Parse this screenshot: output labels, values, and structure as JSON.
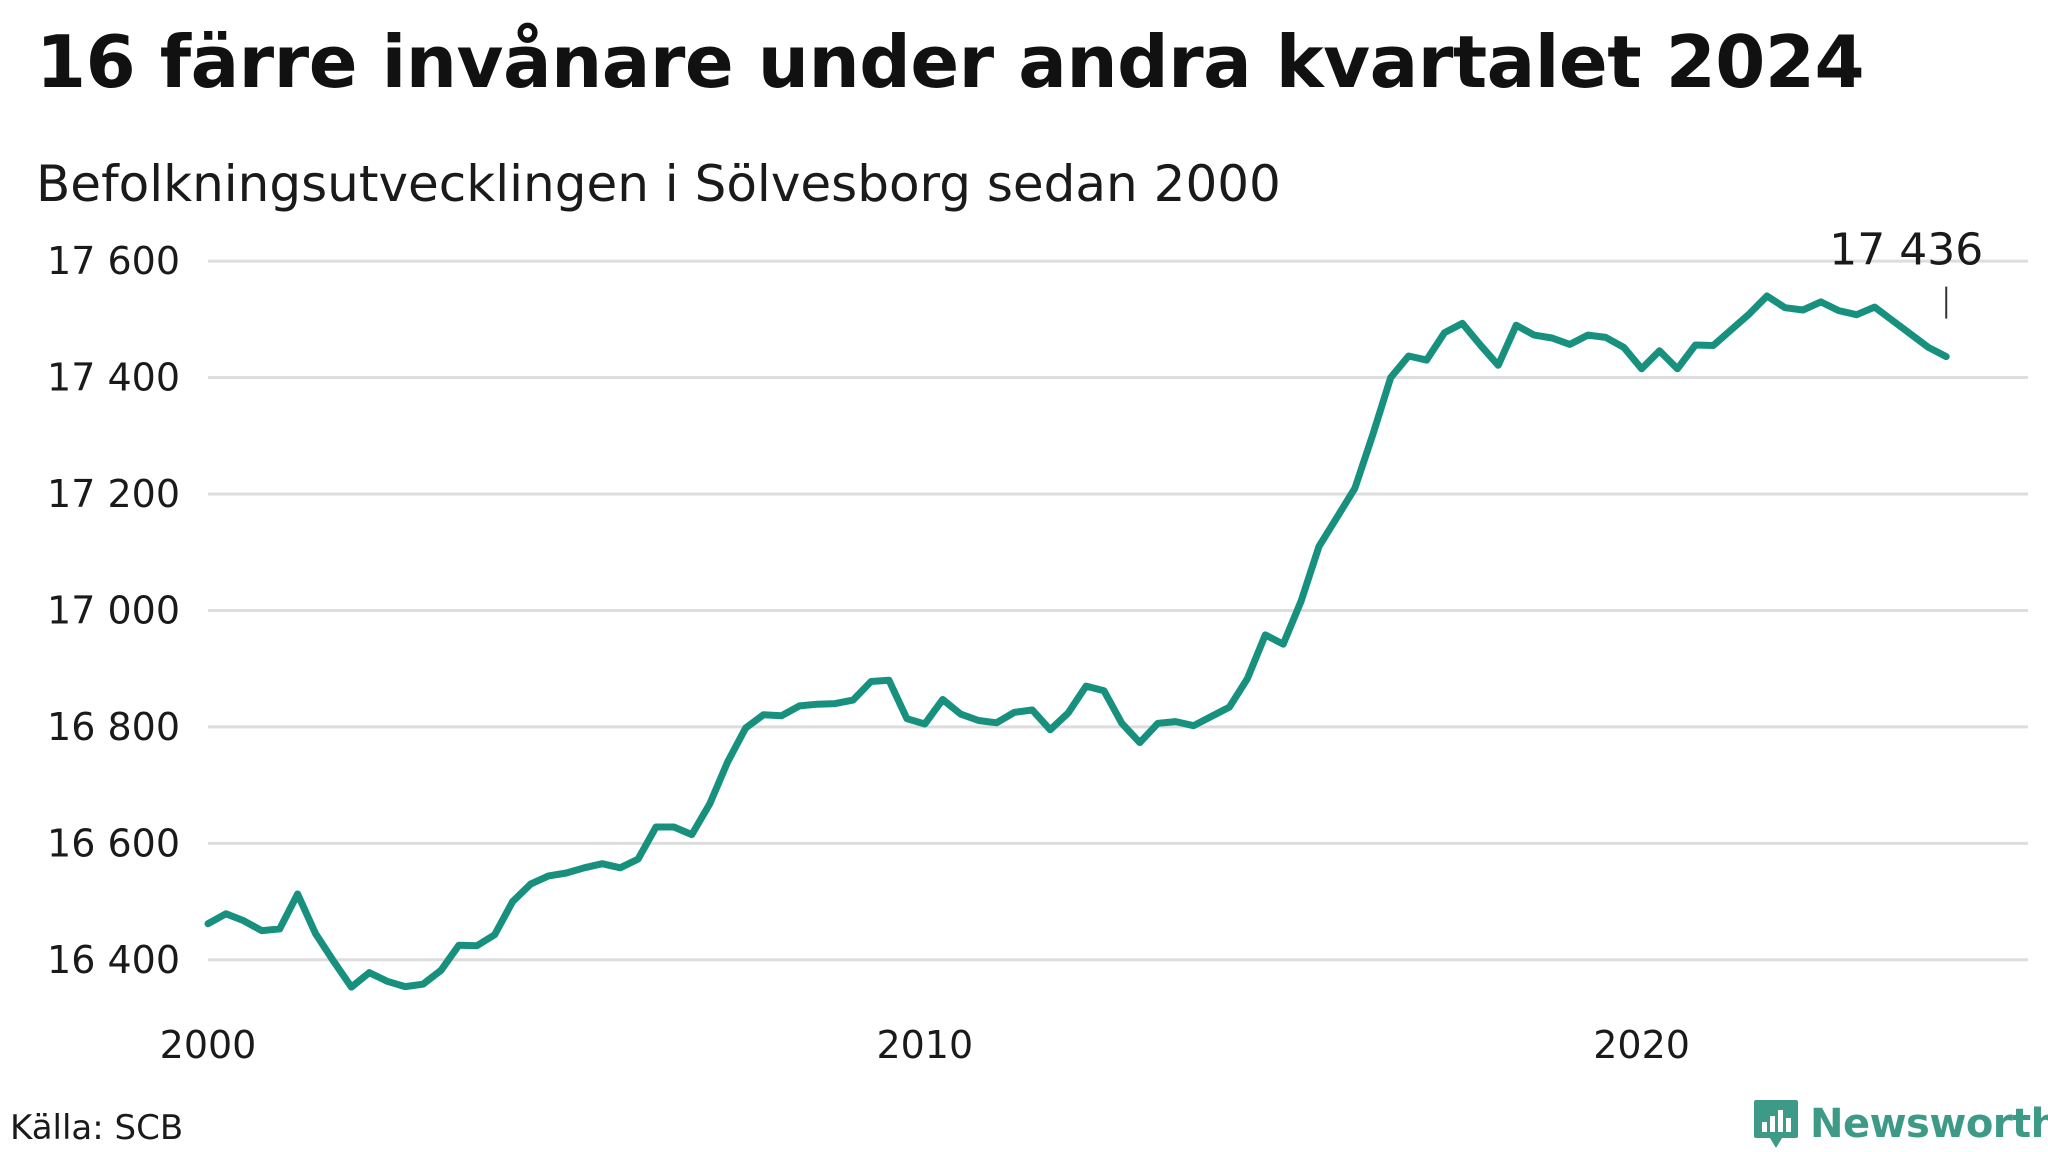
{
  "header": {
    "title": "16 färre invånare under andra kvartalet 2024",
    "subtitle": "Befolkningsutvecklingen i Sölvesborg sedan 2000"
  },
  "footer": {
    "source": "Källa: SCB",
    "brand": "Newsworthy"
  },
  "colors": {
    "line": "#17917d",
    "grid": "#dddddd",
    "brand": "#3d9a86"
  },
  "chart_data": {
    "type": "line",
    "ylim": [
      16300,
      17650
    ],
    "xlim": [
      2000.0,
      2025.0
    ],
    "y_ticks": [
      {
        "value": 16400,
        "label": "16 400"
      },
      {
        "value": 16600,
        "label": "16 600"
      },
      {
        "value": 16800,
        "label": "16 800"
      },
      {
        "value": 17000,
        "label": "17 000"
      },
      {
        "value": 17200,
        "label": "17 200"
      },
      {
        "value": 17400,
        "label": "17 400"
      },
      {
        "value": 17600,
        "label": "17 600"
      }
    ],
    "x_ticks": [
      {
        "value": 2000,
        "label": "2000"
      },
      {
        "value": 2010,
        "label": "2010"
      },
      {
        "value": 2020,
        "label": "2020"
      }
    ],
    "grid": true,
    "annotation": {
      "x": 2024.25,
      "y": 17436,
      "label": "17 436"
    },
    "series": [
      {
        "x": [
          2000.0,
          2000.25,
          2000.5,
          2000.75,
          2001.0,
          2001.25,
          2001.5,
          2001.75,
          2002.0,
          2002.25,
          2002.5,
          2002.75,
          2003.0,
          2003.25,
          2003.5,
          2003.75,
          2004.0,
          2004.25,
          2004.5,
          2004.75,
          2005.0,
          2005.25,
          2005.5,
          2005.75,
          2006.0,
          2006.25,
          2006.5,
          2006.75,
          2007.0,
          2007.25,
          2007.5,
          2007.75,
          2008.0,
          2008.25,
          2008.5,
          2008.75,
          2009.0,
          2009.25,
          2009.5,
          2009.75,
          2010.0,
          2010.25,
          2010.5,
          2010.75,
          2011.0,
          2011.25,
          2011.5,
          2011.75,
          2012.0,
          2012.25,
          2012.5,
          2012.75,
          2013.0,
          2013.25,
          2013.5,
          2013.75,
          2014.0,
          2014.25,
          2014.5,
          2014.75,
          2015.0,
          2015.25,
          2015.5,
          2015.75,
          2016.0,
          2016.25,
          2016.5,
          2016.75,
          2017.0,
          2017.25,
          2017.5,
          2017.75,
          2018.0,
          2018.25,
          2018.5,
          2018.75,
          2019.0,
          2019.25,
          2019.5,
          2019.75,
          2020.0,
          2020.25,
          2020.5,
          2020.75,
          2021.0,
          2021.25,
          2021.5,
          2021.75,
          2022.0,
          2022.25,
          2022.5,
          2022.75,
          2023.0,
          2023.25,
          2023.5,
          2023.75,
          2024.0,
          2024.25
        ],
        "values": [
          16462,
          16479,
          16467,
          16450,
          16453,
          16513,
          16445,
          16398,
          16353,
          16378,
          16363,
          16354,
          16358,
          16382,
          16425,
          16424,
          16443,
          16500,
          16530,
          16544,
          16549,
          16558,
          16565,
          16558,
          16573,
          16628,
          16628,
          16615,
          16668,
          16740,
          16798,
          16821,
          16819,
          16836,
          16839,
          16840,
          16846,
          16878,
          16880,
          16814,
          16805,
          16847,
          16822,
          16811,
          16807,
          16825,
          16829,
          16795,
          16824,
          16870,
          16862,
          16806,
          16773,
          16806,
          16809,
          16802,
          16818,
          16834,
          16883,
          16958,
          16942,
          17016,
          17110,
          17160,
          17210,
          17302,
          17400,
          17437,
          17430,
          17477,
          17493,
          17456,
          17421,
          17490,
          17473,
          17468,
          17457,
          17473,
          17469,
          17452,
          17415,
          17446,
          17415,
          17456,
          17455,
          17482,
          17509,
          17540,
          17520,
          17516,
          17530,
          17515,
          17508,
          17521,
          17498,
          17475,
          17452,
          17436
        ]
      }
    ]
  }
}
